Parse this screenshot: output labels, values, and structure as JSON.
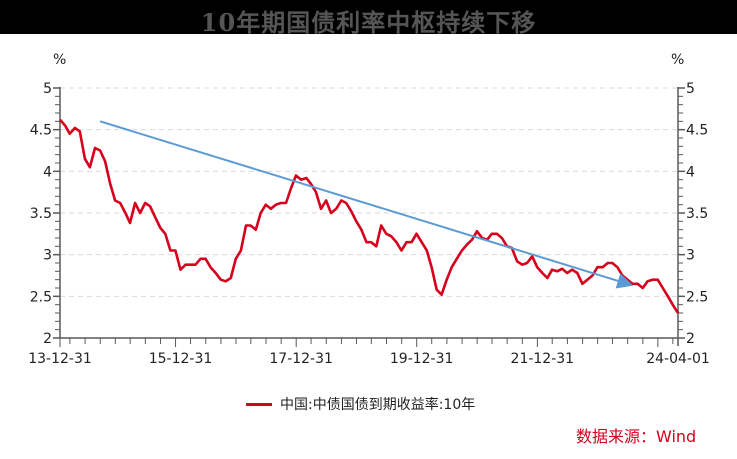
{
  "title": "10年期国债利率中枢持续下移",
  "legend": {
    "label": "中国:中债国债到期收益率:10年",
    "color": "#d6001c"
  },
  "source": "数据来源：Wind",
  "axes": {
    "left_unit": "%",
    "right_unit": "%",
    "y_ticks": [
      "5",
      "4.5",
      "4",
      "3.5",
      "3",
      "2.5",
      "2"
    ],
    "x_ticks": [
      "13-12-31",
      "15-12-31",
      "17-12-31",
      "19-12-31",
      "21-12-31",
      "24-04-01"
    ]
  },
  "colors": {
    "line": "#d6001c",
    "trend": "#5b9bd5",
    "grid": "#d9d9d9",
    "axis": "#595959"
  },
  "chart_data": {
    "type": "line",
    "title": "10年期国债利率中枢持续下移",
    "xlabel": "",
    "ylabel": "%",
    "ylim": [
      2,
      5
    ],
    "xlim": [
      "2013-12-31",
      "2024-04-01"
    ],
    "grid": true,
    "legend_position": "bottom",
    "x_tick_labels": [
      "13-12-31",
      "15-12-31",
      "17-12-31",
      "19-12-31",
      "21-12-31",
      "24-04-01"
    ],
    "y_tick_labels": [
      "2",
      "2.5",
      "3",
      "3.5",
      "4",
      "4.5",
      "5"
    ],
    "series": [
      {
        "name": "中国:中债国债到期收益率:10年",
        "color": "#d6001c",
        "x": [
          "2013-12-31",
          "2014-01-31",
          "2014-02-28",
          "2014-03-31",
          "2014-04-30",
          "2014-05-31",
          "2014-06-30",
          "2014-07-31",
          "2014-08-31",
          "2014-09-30",
          "2014-10-31",
          "2014-11-30",
          "2014-12-31",
          "2015-01-31",
          "2015-02-28",
          "2015-03-31",
          "2015-04-30",
          "2015-05-31",
          "2015-06-30",
          "2015-07-31",
          "2015-08-31",
          "2015-09-30",
          "2015-10-31",
          "2015-11-30",
          "2015-12-31",
          "2016-01-31",
          "2016-02-29",
          "2016-03-31",
          "2016-04-30",
          "2016-05-31",
          "2016-06-30",
          "2016-07-31",
          "2016-08-31",
          "2016-09-30",
          "2016-10-31",
          "2016-11-30",
          "2016-12-31",
          "2017-01-31",
          "2017-02-28",
          "2017-03-31",
          "2017-04-30",
          "2017-05-31",
          "2017-06-30",
          "2017-07-31",
          "2017-08-31",
          "2017-09-30",
          "2017-10-31",
          "2017-11-30",
          "2017-12-31",
          "2018-01-31",
          "2018-02-28",
          "2018-03-31",
          "2018-04-30",
          "2018-05-31",
          "2018-06-30",
          "2018-07-31",
          "2018-08-31",
          "2018-09-30",
          "2018-10-31",
          "2018-11-30",
          "2018-12-31",
          "2019-01-31",
          "2019-02-28",
          "2019-03-31",
          "2019-04-30",
          "2019-05-31",
          "2019-06-30",
          "2019-07-31",
          "2019-08-31",
          "2019-09-30",
          "2019-10-31",
          "2019-11-30",
          "2019-12-31",
          "2020-01-31",
          "2020-02-29",
          "2020-03-31",
          "2020-04-30",
          "2020-05-31",
          "2020-06-30",
          "2020-07-31",
          "2020-08-31",
          "2020-09-30",
          "2020-10-31",
          "2020-11-30",
          "2020-12-31",
          "2021-01-31",
          "2021-02-28",
          "2021-03-31",
          "2021-04-30",
          "2021-05-31",
          "2021-06-30",
          "2021-07-31",
          "2021-08-31",
          "2021-09-30",
          "2021-10-31",
          "2021-11-30",
          "2021-12-31",
          "2022-01-31",
          "2022-02-28",
          "2022-03-31",
          "2022-04-30",
          "2022-05-31",
          "2022-06-30",
          "2022-07-31",
          "2022-08-31",
          "2022-09-30",
          "2022-10-31",
          "2022-11-30",
          "2022-12-31",
          "2023-01-31",
          "2023-02-28",
          "2023-03-31",
          "2023-04-30",
          "2023-05-31",
          "2023-06-30",
          "2023-07-31",
          "2023-08-31",
          "2023-09-30",
          "2023-10-31",
          "2023-11-30",
          "2023-12-31",
          "2024-01-31",
          "2024-02-29",
          "2024-04-01"
        ],
        "values": [
          4.62,
          4.55,
          4.45,
          4.52,
          4.48,
          4.15,
          4.05,
          4.28,
          4.25,
          4.12,
          3.85,
          3.65,
          3.62,
          3.5,
          3.38,
          3.62,
          3.5,
          3.62,
          3.58,
          3.45,
          3.32,
          3.25,
          3.05,
          3.05,
          2.82,
          2.88,
          2.88,
          2.88,
          2.95,
          2.95,
          2.85,
          2.78,
          2.7,
          2.68,
          2.72,
          2.95,
          3.05,
          3.35,
          3.35,
          3.3,
          3.5,
          3.6,
          3.55,
          3.6,
          3.62,
          3.62,
          3.8,
          3.95,
          3.9,
          3.92,
          3.85,
          3.75,
          3.55,
          3.65,
          3.5,
          3.55,
          3.65,
          3.62,
          3.52,
          3.4,
          3.3,
          3.15,
          3.15,
          3.1,
          3.35,
          3.25,
          3.22,
          3.15,
          3.05,
          3.15,
          3.15,
          3.25,
          3.15,
          3.05,
          2.85,
          2.58,
          2.52,
          2.7,
          2.85,
          2.95,
          3.05,
          3.12,
          3.18,
          3.28,
          3.2,
          3.18,
          3.25,
          3.25,
          3.2,
          3.1,
          3.08,
          2.92,
          2.88,
          2.9,
          2.98,
          2.85,
          2.78,
          2.72,
          2.82,
          2.8,
          2.83,
          2.78,
          2.82,
          2.78,
          2.65,
          2.7,
          2.75,
          2.85,
          2.85,
          2.9,
          2.9,
          2.85,
          2.75,
          2.7,
          2.65,
          2.65,
          2.6,
          2.68,
          2.7,
          2.7,
          2.6,
          2.5,
          2.4,
          2.3
        ]
      },
      {
        "name": "trend-arrow",
        "color": "#5b9bd5",
        "x": [
          "2014-08-31",
          "2023-05-31"
        ],
        "values": [
          4.6,
          2.65
        ]
      }
    ]
  }
}
